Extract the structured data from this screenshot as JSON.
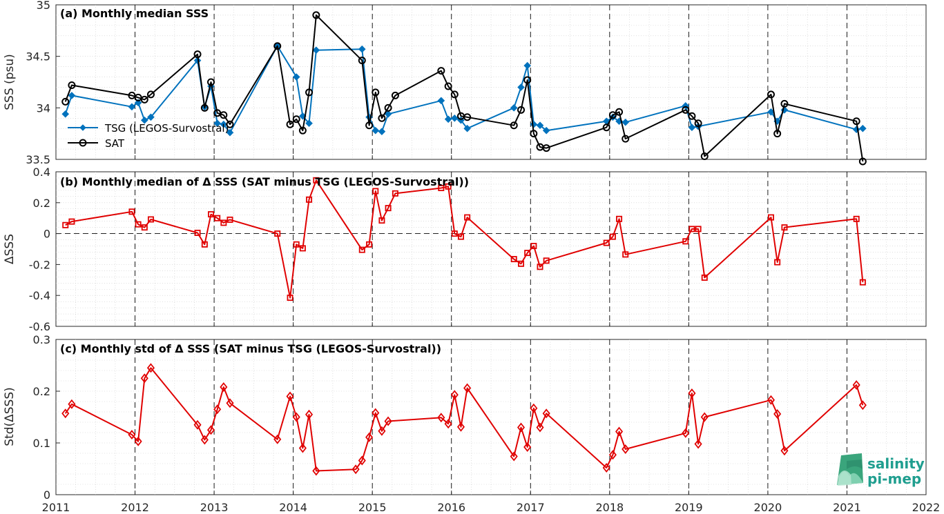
{
  "colors": {
    "tsg": "#0072BD",
    "sat": "#000000",
    "delta": "#E00000",
    "logo": "#1f9e8f"
  },
  "logo": {
    "line1": "salinity",
    "line2": "pi-mep"
  },
  "x_axis": {
    "tick_labels": [
      "2011",
      "2012",
      "2013",
      "2014",
      "2015",
      "2016",
      "2017",
      "2018",
      "2019",
      "2020",
      "2021",
      "2022"
    ],
    "range": [
      2011,
      2022
    ]
  },
  "chart_data": [
    {
      "type": "line",
      "title": "(a) Monthly median SSS",
      "ylabel": "SSS (psu)",
      "ylim": [
        33.5,
        35
      ],
      "yticks": [
        "33.5",
        "34",
        "34.5",
        "35"
      ],
      "ytick_values": [
        33.5,
        34,
        34.5,
        35
      ],
      "grid": "minor dotted, yearly dashed",
      "legend_position": "lower-left",
      "series": [
        {
          "name": "TSG (LEGOS-Survostral)",
          "marker": "diamond-filled",
          "x": [
            2011.12,
            2011.2,
            2011.96,
            2012.04,
            2012.12,
            2012.2,
            2012.79,
            2012.88,
            2012.96,
            2013.04,
            2013.12,
            2013.2,
            2013.8,
            2014.04,
            2014.12,
            2014.2,
            2014.29,
            2014.87,
            2014.96,
            2015.04,
            2015.12,
            2015.2,
            2015.87,
            2015.96,
            2016.04,
            2016.12,
            2016.2,
            2016.79,
            2016.88,
            2016.96,
            2017.04,
            2017.12,
            2017.2,
            2017.96,
            2018.04,
            2018.12,
            2018.2,
            2018.96,
            2019.04,
            2019.12,
            2020.04,
            2020.12,
            2020.21,
            2021.12,
            2021.2
          ],
          "y": [
            33.94,
            34.12,
            34.01,
            34.05,
            33.88,
            33.91,
            34.46,
            34.01,
            34.21,
            33.85,
            33.84,
            33.76,
            34.6,
            34.3,
            33.92,
            33.85,
            34.56,
            34.57,
            33.91,
            33.78,
            33.77,
            33.94,
            34.07,
            33.89,
            33.9,
            33.88,
            33.8,
            34.0,
            34.2,
            34.41,
            33.84,
            33.83,
            33.78,
            33.87,
            33.91,
            33.87,
            33.86,
            34.02,
            33.81,
            33.82,
            33.96,
            33.87,
            33.98,
            33.79,
            33.8
          ]
        },
        {
          "name": "SAT",
          "marker": "circle-open",
          "x": [
            2011.12,
            2011.2,
            2011.96,
            2012.04,
            2012.12,
            2012.2,
            2012.79,
            2012.88,
            2012.96,
            2013.04,
            2013.12,
            2013.2,
            2013.8,
            2013.96,
            2014.04,
            2014.12,
            2014.2,
            2014.29,
            2014.87,
            2014.96,
            2015.04,
            2015.12,
            2015.2,
            2015.29,
            2015.87,
            2015.96,
            2016.04,
            2016.12,
            2016.2,
            2016.79,
            2016.88,
            2016.96,
            2017.04,
            2017.12,
            2017.2,
            2017.96,
            2018.04,
            2018.12,
            2018.2,
            2018.96,
            2019.04,
            2019.12,
            2019.2,
            2020.04,
            2020.12,
            2020.21,
            2021.12,
            2021.2
          ],
          "y": [
            34.06,
            34.22,
            34.12,
            34.1,
            34.08,
            34.13,
            34.52,
            34.0,
            34.25,
            33.95,
            33.93,
            33.84,
            34.6,
            33.84,
            33.89,
            33.78,
            34.15,
            34.9,
            34.46,
            33.83,
            34.15,
            33.9,
            34.0,
            34.12,
            34.36,
            34.21,
            34.13,
            33.92,
            33.91,
            33.83,
            33.98,
            34.27,
            33.75,
            33.62,
            33.61,
            33.81,
            33.93,
            33.96,
            33.7,
            33.98,
            33.92,
            33.85,
            33.53,
            34.13,
            33.75,
            34.04,
            33.87,
            33.48
          ]
        }
      ]
    },
    {
      "type": "line",
      "title": "(b) Monthly median of Δ SSS (SAT minus TSG (LEGOS-Survostral))",
      "ylabel": "ΔSSS",
      "ylim": [
        -0.6,
        0.4
      ],
      "yticks": [
        "-0.6",
        "-0.4",
        "-0.2",
        "0",
        "0.2",
        "0.4"
      ],
      "ytick_values": [
        -0.6,
        -0.4,
        -0.2,
        0,
        0.2,
        0.4
      ],
      "zero_line": true,
      "series": [
        {
          "marker": "square-open",
          "x": [
            2011.12,
            2011.2,
            2011.96,
            2012.04,
            2012.12,
            2012.2,
            2012.79,
            2012.88,
            2012.96,
            2013.04,
            2013.12,
            2013.2,
            2013.8,
            2013.96,
            2014.04,
            2014.12,
            2014.2,
            2014.29,
            2014.87,
            2014.96,
            2015.04,
            2015.12,
            2015.2,
            2015.29,
            2015.87,
            2015.96,
            2016.04,
            2016.12,
            2016.2,
            2016.79,
            2016.88,
            2016.96,
            2017.04,
            2017.12,
            2017.2,
            2017.96,
            2018.04,
            2018.12,
            2018.2,
            2018.96,
            2019.04,
            2019.12,
            2019.2,
            2020.04,
            2020.12,
            2020.21,
            2021.12,
            2021.2
          ],
          "y": [
            0.055,
            0.078,
            0.142,
            0.06,
            0.04,
            0.092,
            0.005,
            -0.07,
            0.125,
            0.1,
            0.07,
            0.09,
            0.0,
            -0.415,
            -0.07,
            -0.095,
            0.22,
            0.345,
            -0.105,
            -0.07,
            0.275,
            0.085,
            0.165,
            0.26,
            0.295,
            0.305,
            0.0,
            -0.02,
            0.105,
            -0.165,
            -0.195,
            -0.125,
            -0.08,
            -0.215,
            -0.175,
            -0.06,
            -0.02,
            0.095,
            -0.135,
            -0.05,
            0.03,
            0.03,
            -0.285,
            0.105,
            -0.185,
            0.04,
            0.095,
            -0.315
          ]
        }
      ]
    },
    {
      "type": "line",
      "title": "(c) Monthly std of Δ SSS (SAT minus TSG (LEGOS-Survostral))",
      "ylabel": "Std(ΔSSS)",
      "ylim": [
        0,
        0.3
      ],
      "yticks": [
        "0",
        "0.1",
        "0.2",
        "0.3"
      ],
      "ytick_values": [
        0,
        0.1,
        0.2,
        0.3
      ],
      "series": [
        {
          "marker": "diamond-open",
          "x": [
            2011.12,
            2011.2,
            2011.96,
            2012.04,
            2012.12,
            2012.2,
            2012.79,
            2012.88,
            2012.96,
            2013.04,
            2013.12,
            2013.2,
            2013.8,
            2013.96,
            2014.04,
            2014.12,
            2014.2,
            2014.29,
            2014.79,
            2014.87,
            2014.96,
            2015.04,
            2015.12,
            2015.2,
            2015.87,
            2015.96,
            2016.04,
            2016.12,
            2016.2,
            2016.79,
            2016.88,
            2016.96,
            2017.04,
            2017.12,
            2017.2,
            2017.96,
            2018.04,
            2018.12,
            2018.2,
            2018.96,
            2019.04,
            2019.12,
            2019.2,
            2020.04,
            2020.12,
            2020.21,
            2021.12,
            2021.2
          ],
          "y": [
            0.157,
            0.175,
            0.116,
            0.103,
            0.225,
            0.245,
            0.135,
            0.106,
            0.125,
            0.165,
            0.208,
            0.177,
            0.107,
            0.19,
            0.15,
            0.09,
            0.155,
            0.046,
            0.049,
            0.066,
            0.111,
            0.158,
            0.123,
            0.142,
            0.149,
            0.137,
            0.193,
            0.131,
            0.206,
            0.074,
            0.13,
            0.092,
            0.167,
            0.13,
            0.157,
            0.052,
            0.077,
            0.122,
            0.088,
            0.119,
            0.196,
            0.098,
            0.15,
            0.183,
            0.156,
            0.085,
            0.212,
            0.173
          ]
        }
      ]
    }
  ]
}
